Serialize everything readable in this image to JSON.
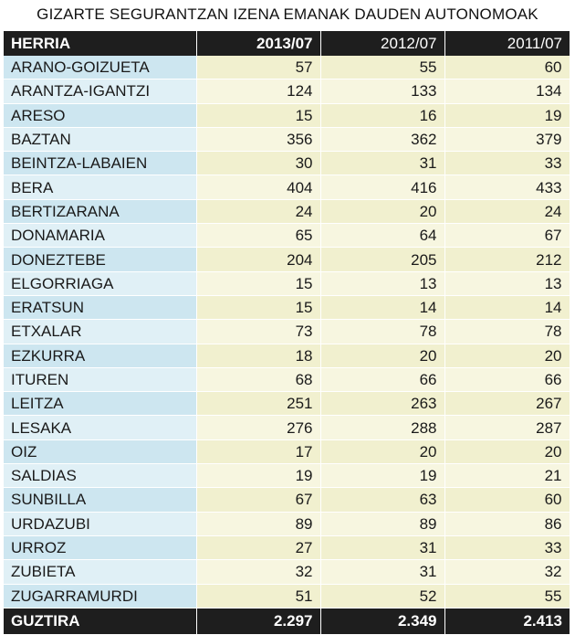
{
  "title": "GIZARTE SEGURANTZAN IZENA EMANAK DAUDEN AUTONOMOAK",
  "headers": [
    "HERRIA",
    "2013/07",
    "2012/07",
    "2011/07"
  ],
  "rows": [
    {
      "name": "ARANO-GOIZUETA",
      "y2013": "57",
      "y2012": "55",
      "y2011": "60"
    },
    {
      "name": "ARANTZA-IGANTZI",
      "y2013": "124",
      "y2012": "133",
      "y2011": "134"
    },
    {
      "name": "ARESO",
      "y2013": "15",
      "y2012": "16",
      "y2011": "19"
    },
    {
      "name": "BAZTAN",
      "y2013": "356",
      "y2012": "362",
      "y2011": "379"
    },
    {
      "name": "BEINTZA-LABAIEN",
      "y2013": "30",
      "y2012": "31",
      "y2011": "33"
    },
    {
      "name": "BERA",
      "y2013": "404",
      "y2012": "416",
      "y2011": "433"
    },
    {
      "name": "BERTIZARANA",
      "y2013": "24",
      "y2012": "20",
      "y2011": "24"
    },
    {
      "name": "DONAMARIA",
      "y2013": "65",
      "y2012": "64",
      "y2011": "67"
    },
    {
      "name": "DONEZTEBE",
      "y2013": "204",
      "y2012": "205",
      "y2011": "212"
    },
    {
      "name": "ELGORRIAGA",
      "y2013": "15",
      "y2012": "13",
      "y2011": "13"
    },
    {
      "name": "ERATSUN",
      "y2013": "15",
      "y2012": "14",
      "y2011": "14"
    },
    {
      "name": "ETXALAR",
      "y2013": "73",
      "y2012": "78",
      "y2011": "78"
    },
    {
      "name": "EZKURRA",
      "y2013": "18",
      "y2012": "20",
      "y2011": "20"
    },
    {
      "name": "ITUREN",
      "y2013": "68",
      "y2012": "66",
      "y2011": "66"
    },
    {
      "name": "LEITZA",
      "y2013": "251",
      "y2012": "263",
      "y2011": "267"
    },
    {
      "name": "LESAKA",
      "y2013": "276",
      "y2012": "288",
      "y2011": "287"
    },
    {
      "name": "OIZ",
      "y2013": "17",
      "y2012": "20",
      "y2011": "20"
    },
    {
      "name": "SALDIAS",
      "y2013": "19",
      "y2012": "19",
      "y2011": "21"
    },
    {
      "name": "SUNBILLA",
      "y2013": "67",
      "y2012": "63",
      "y2011": "60"
    },
    {
      "name": "URDAZUBI",
      "y2013": "89",
      "y2012": "89",
      "y2011": "86"
    },
    {
      "name": "URROZ",
      "y2013": "27",
      "y2012": "31",
      "y2011": "33"
    },
    {
      "name": "ZUBIETA",
      "y2013": "32",
      "y2012": "31",
      "y2011": "32"
    },
    {
      "name": "ZUGARRAMURDI",
      "y2013": "51",
      "y2012": "52",
      "y2011": "55"
    }
  ],
  "total": {
    "name": "GUZTIRA",
    "y2013": "2.297",
    "y2012": "2.349",
    "y2011": "2.413"
  },
  "colors": {
    "header_bg": "#1e1e1e",
    "name_col_bg": "#cde6f0",
    "value_col_bg": "#f1f0cf"
  }
}
